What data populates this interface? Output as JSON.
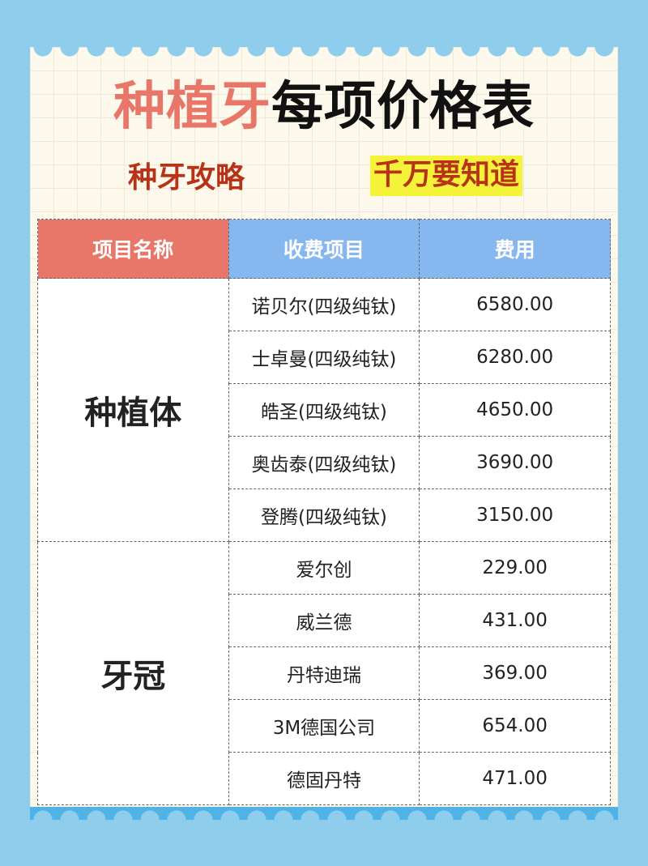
{
  "title": {
    "part1": "种植牙",
    "part2": "每项价格表"
  },
  "subtitle": {
    "left": "种牙攻略",
    "right": "千万要知道"
  },
  "colors": {
    "background": "#8ecdec",
    "title_accent": "#e8776a",
    "header_col1": "#e8776a",
    "header_col2": "#86b7ef",
    "highlight": "#f5f23a"
  },
  "table": {
    "headers": [
      "项目名称",
      "收费项目",
      "费用"
    ],
    "groups": [
      {
        "category": "种植体",
        "rows": [
          [
            "诺贝尔(四级纯钛)",
            "6580.00"
          ],
          [
            "士卓曼(四级纯钛)",
            "6280.00"
          ],
          [
            "皓圣(四级纯钛)",
            "4650.00"
          ],
          [
            "奥齿泰(四级纯钛)",
            "3690.00"
          ],
          [
            "登腾(四级纯钛)",
            "3150.00"
          ]
        ]
      },
      {
        "category": "牙冠",
        "rows": [
          [
            "爱尔创",
            "229.00"
          ],
          [
            "威兰德",
            "431.00"
          ],
          [
            "丹特迪瑞",
            "369.00"
          ],
          [
            "3M德国公司",
            "654.00"
          ],
          [
            "德固丹特",
            "471.00"
          ]
        ]
      }
    ]
  }
}
